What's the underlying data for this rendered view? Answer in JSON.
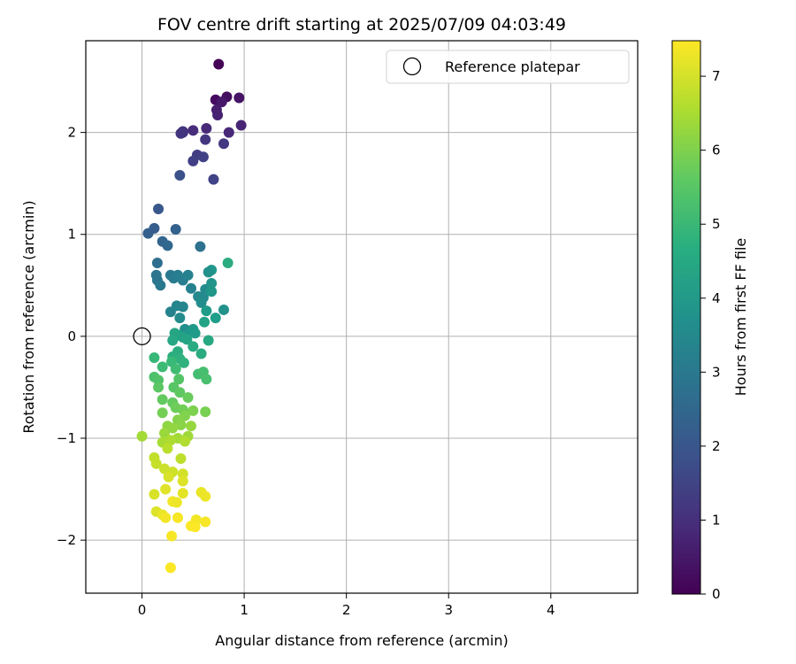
{
  "chart_data": {
    "type": "scatter",
    "title": "FOV centre drift starting at 2025/07/09 04:03:49",
    "xlabel": "Angular distance from reference (arcmin)",
    "ylabel": "Rotation from reference (arcmin)",
    "xlim": [
      -0.55,
      4.85
    ],
    "ylim": [
      -2.52,
      2.9
    ],
    "xticks": [
      0,
      1,
      2,
      3,
      4
    ],
    "yticks": [
      -2,
      -1,
      0,
      1,
      2
    ],
    "xtick_labels": [
      "0",
      "1",
      "2",
      "3",
      "4"
    ],
    "ytick_labels": [
      "−2",
      "−1",
      "0",
      "1",
      "2"
    ],
    "grid": true,
    "legend": {
      "position": "top-right",
      "entries": [
        "Reference platepar"
      ]
    },
    "reference_point": {
      "x": 0,
      "y": 0
    },
    "colorbar": {
      "label": "Hours from first FF file",
      "colormap": "viridis",
      "range": [
        0,
        7.48
      ],
      "ticks": [
        0,
        1,
        2,
        3,
        4,
        5,
        6,
        7
      ],
      "tick_labels": [
        "0",
        "1",
        "2",
        "3",
        "4",
        "5",
        "6",
        "7"
      ]
    },
    "points": [
      [
        0.75,
        2.67,
        0.05
      ],
      [
        0.72,
        2.32,
        0.2
      ],
      [
        0.83,
        2.35,
        0.3
      ],
      [
        0.95,
        2.34,
        0.4
      ],
      [
        0.78,
        2.3,
        0.5
      ],
      [
        0.73,
        2.22,
        0.6
      ],
      [
        0.74,
        2.17,
        0.7
      ],
      [
        0.97,
        2.07,
        0.75
      ],
      [
        0.85,
        2.0,
        0.85
      ],
      [
        0.63,
        2.04,
        0.9
      ],
      [
        0.5,
        2.02,
        0.95
      ],
      [
        0.4,
        2.0,
        1.0
      ],
      [
        0.4,
        2.01,
        1.1
      ],
      [
        0.38,
        1.99,
        1.15
      ],
      [
        0.62,
        1.93,
        1.2
      ],
      [
        0.8,
        1.89,
        1.25
      ],
      [
        0.54,
        1.78,
        1.35
      ],
      [
        0.5,
        1.72,
        1.4
      ],
      [
        0.6,
        1.76,
        1.45
      ],
      [
        0.7,
        1.54,
        1.5
      ],
      [
        0.37,
        1.58,
        1.85
      ],
      [
        0.16,
        1.25,
        2.05
      ],
      [
        0.12,
        1.06,
        2.2
      ],
      [
        0.06,
        1.01,
        2.25
      ],
      [
        0.33,
        1.05,
        2.3
      ],
      [
        0.2,
        0.93,
        2.45
      ],
      [
        0.25,
        0.89,
        2.5
      ],
      [
        0.15,
        0.72,
        2.7
      ],
      [
        0.57,
        0.88,
        2.8
      ],
      [
        0.14,
        0.6,
        2.9
      ],
      [
        0.15,
        0.55,
        2.95
      ],
      [
        0.18,
        0.5,
        3.0
      ],
      [
        0.28,
        0.6,
        3.05
      ],
      [
        0.31,
        0.57,
        3.1
      ],
      [
        0.35,
        0.6,
        3.15
      ],
      [
        0.4,
        0.55,
        3.2
      ],
      [
        0.45,
        0.6,
        3.25
      ],
      [
        0.48,
        0.47,
        3.3
      ],
      [
        0.28,
        0.24,
        3.35
      ],
      [
        0.34,
        0.3,
        3.4
      ],
      [
        0.4,
        0.29,
        3.45
      ],
      [
        0.55,
        0.39,
        3.5
      ],
      [
        0.6,
        0.38,
        3.55
      ],
      [
        0.62,
        0.46,
        3.6
      ],
      [
        0.58,
        0.33,
        3.65
      ],
      [
        0.68,
        0.65,
        4.0
      ],
      [
        0.65,
        0.63,
        3.75
      ],
      [
        0.84,
        0.72,
        4.6
      ],
      [
        0.68,
        0.52,
        3.9
      ],
      [
        0.68,
        0.44,
        3.95
      ],
      [
        0.63,
        0.25,
        4.1
      ],
      [
        0.72,
        0.18,
        4.15
      ],
      [
        0.8,
        0.26,
        3.8
      ],
      [
        0.61,
        0.14,
        4.3
      ],
      [
        0.37,
        0.18,
        3.6
      ],
      [
        0.42,
        0.07,
        3.7
      ],
      [
        0.45,
        0.03,
        3.9
      ],
      [
        0.5,
        0.07,
        4.0
      ],
      [
        0.52,
        0.03,
        4.1
      ],
      [
        0.36,
        0.01,
        4.2
      ],
      [
        0.4,
        -0.01,
        4.3
      ],
      [
        0.44,
        -0.03,
        4.35
      ],
      [
        0.32,
        0.03,
        4.4
      ],
      [
        0.3,
        -0.04,
        4.45
      ],
      [
        0.65,
        -0.04,
        4.5
      ],
      [
        0.5,
        -0.1,
        4.55
      ],
      [
        0.58,
        -0.17,
        4.6
      ],
      [
        0.35,
        -0.15,
        4.65
      ],
      [
        0.3,
        -0.2,
        4.7
      ],
      [
        0.37,
        -0.22,
        4.75
      ],
      [
        0.41,
        -0.26,
        4.8
      ],
      [
        0.12,
        -0.21,
        5.0
      ],
      [
        0.29,
        -0.25,
        5.05
      ],
      [
        0.2,
        -0.3,
        5.1
      ],
      [
        0.33,
        -0.32,
        5.15
      ],
      [
        0.55,
        -0.37,
        5.2
      ],
      [
        0.6,
        -0.35,
        5.25
      ],
      [
        0.63,
        -0.42,
        5.3
      ],
      [
        0.12,
        -0.4,
        5.35
      ],
      [
        0.16,
        -0.43,
        5.4
      ],
      [
        0.36,
        -0.42,
        5.45
      ],
      [
        0.31,
        -0.5,
        5.5
      ],
      [
        0.16,
        -0.5,
        5.55
      ],
      [
        0.37,
        -0.55,
        5.6
      ],
      [
        0.2,
        -0.62,
        5.65
      ],
      [
        0.3,
        -0.65,
        5.7
      ],
      [
        0.45,
        -0.6,
        5.75
      ],
      [
        0.33,
        -0.7,
        5.8
      ],
      [
        0.4,
        -0.72,
        5.85
      ],
      [
        0.2,
        -0.75,
        5.9
      ],
      [
        0.62,
        -0.74,
        5.95
      ],
      [
        0.5,
        -0.73,
        6.0
      ],
      [
        0.42,
        -0.78,
        6.05
      ],
      [
        0.35,
        -0.82,
        6.1
      ],
      [
        0.38,
        -0.87,
        6.15
      ],
      [
        0.25,
        -0.88,
        6.2
      ],
      [
        0.3,
        -0.9,
        6.25
      ],
      [
        0.48,
        -0.88,
        6.3
      ],
      [
        0.22,
        -0.95,
        6.35
      ],
      [
        0.45,
        -0.98,
        6.4
      ],
      [
        0.35,
        -1.0,
        6.45
      ],
      [
        0.2,
        -1.04,
        6.5
      ],
      [
        0.28,
        -1.02,
        6.55
      ],
      [
        0.42,
        -1.03,
        6.6
      ],
      [
        0.0,
        -0.98,
        6.45
      ],
      [
        0.25,
        -1.1,
        6.7
      ],
      [
        0.38,
        -1.2,
        6.75
      ],
      [
        0.12,
        -1.19,
        6.8
      ],
      [
        0.14,
        -1.25,
        6.85
      ],
      [
        0.22,
        -1.3,
        6.9
      ],
      [
        0.3,
        -1.33,
        6.95
      ],
      [
        0.4,
        -1.35,
        7.0
      ],
      [
        0.26,
        -1.38,
        7.05
      ],
      [
        0.4,
        -1.42,
        7.1
      ],
      [
        0.23,
        -1.5,
        7.15
      ],
      [
        0.4,
        -1.54,
        7.2
      ],
      [
        0.12,
        -1.55,
        7.05
      ],
      [
        0.58,
        -1.53,
        7.25
      ],
      [
        0.62,
        -1.57,
        7.3
      ],
      [
        0.3,
        -1.62,
        7.35
      ],
      [
        0.34,
        -1.63,
        7.3
      ],
      [
        0.14,
        -1.72,
        7.1
      ],
      [
        0.2,
        -1.75,
        7.25
      ],
      [
        0.23,
        -1.78,
        7.35
      ],
      [
        0.35,
        -1.78,
        7.4
      ],
      [
        0.53,
        -1.8,
        7.35
      ],
      [
        0.62,
        -1.82,
        7.4
      ],
      [
        0.48,
        -1.86,
        7.45
      ],
      [
        0.52,
        -1.87,
        7.45
      ],
      [
        0.29,
        -1.96,
        7.4
      ],
      [
        0.28,
        -2.27,
        7.45
      ]
    ]
  }
}
